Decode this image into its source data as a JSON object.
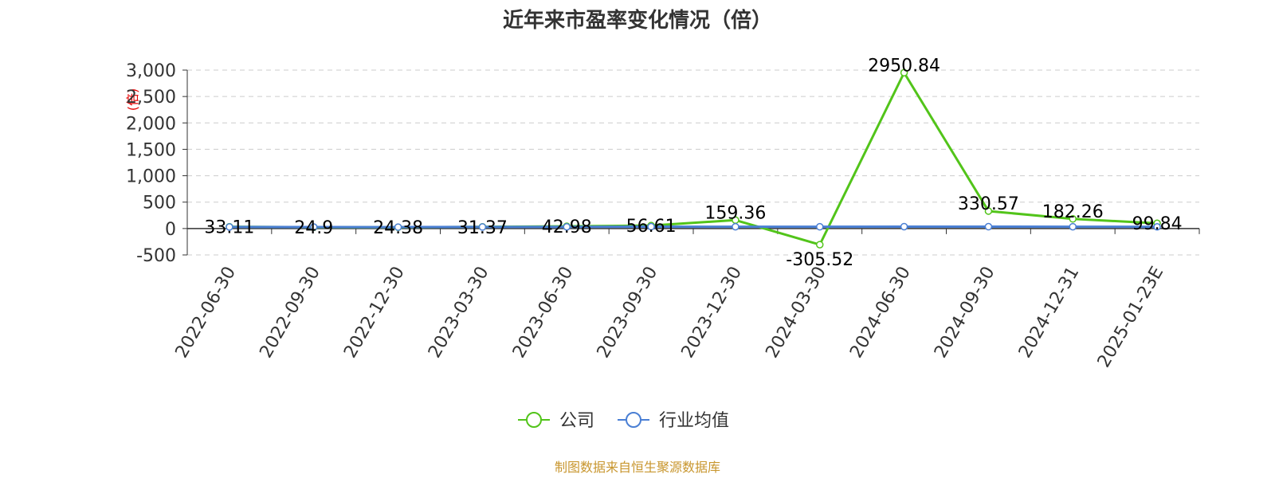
{
  "chart_data": {
    "type": "line",
    "title": "近年来市盈率变化情况（倍）",
    "ylabel": "(倍)",
    "categories": [
      "2022-06-30",
      "2022-09-30",
      "2022-12-30",
      "2023-03-30",
      "2023-06-30",
      "2023-09-30",
      "2023-12-30",
      "2024-03-30",
      "2024-06-30",
      "2024-09-30",
      "2024-12-31",
      "2025-01-23E"
    ],
    "ylim": [
      -500,
      3000
    ],
    "yticks": [
      -500,
      0,
      500,
      1000,
      1500,
      2000,
      2500,
      3000
    ],
    "ytick_labels": [
      "-500",
      "0",
      "500",
      "1,000",
      "1,500",
      "2,000",
      "2,500",
      "3,000"
    ],
    "grid": true,
    "legend_position": "bottom",
    "series": [
      {
        "name": "公司",
        "color": "#52c41a",
        "values": [
          33.11,
          24.9,
          24.38,
          31.37,
          42.98,
          56.61,
          159.36,
          -305.52,
          2950.84,
          330.57,
          182.26,
          99.84
        ],
        "labels": [
          "33.11",
          "24.9",
          "24.38",
          "31.37",
          "42.98",
          "56.61",
          "159.36",
          "-305.52",
          "2950.84",
          "330.57",
          "182.26",
          "99.84"
        ]
      },
      {
        "name": "行业均值",
        "color": "#4a7fd4",
        "values": [
          30,
          28,
          27,
          29,
          32,
          35,
          34,
          33,
          36,
          35,
          34,
          32
        ]
      }
    ],
    "source": "制图数据来自恒生聚源数据库"
  }
}
